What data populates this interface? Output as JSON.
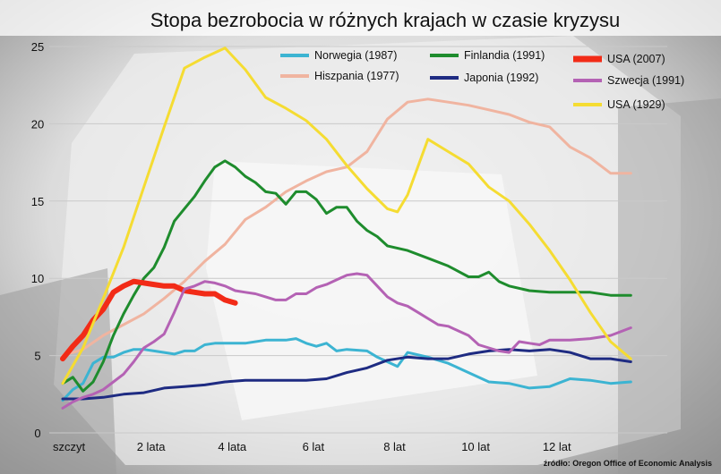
{
  "chart_data": {
    "type": "line",
    "title": "Stopa bezrobocia w różnych krajach w czasie kryzysu",
    "source": "źródło: Oregon Office of Economic Analysis",
    "xlabel": "",
    "ylabel": "",
    "xlim": [
      0,
      14.5
    ],
    "ylim": [
      0,
      25
    ],
    "grid": true,
    "legend_position": "top-right",
    "x_ticks": [
      {
        "value": 0,
        "label": "szczyt"
      },
      {
        "value": 2,
        "label": "2 lata"
      },
      {
        "value": 4,
        "label": "4 lata"
      },
      {
        "value": 6,
        "label": "6 lat"
      },
      {
        "value": 8,
        "label": "8 lat"
      },
      {
        "value": 10,
        "label": "10 lat"
      },
      {
        "value": 12,
        "label": "12 lat"
      }
    ],
    "y_ticks": [
      0,
      5,
      10,
      15,
      20,
      25
    ],
    "series": [
      {
        "name": "Norwegia (1987)",
        "color": "#3cb4d2",
        "width": 3,
        "points": [
          [
            0,
            2.1
          ],
          [
            0.25,
            2.8
          ],
          [
            0.5,
            3.2
          ],
          [
            0.75,
            4.5
          ],
          [
            1,
            4.9
          ],
          [
            1.25,
            4.9
          ],
          [
            1.5,
            5.2
          ],
          [
            1.75,
            5.4
          ],
          [
            2,
            5.4
          ],
          [
            2.25,
            5.3
          ],
          [
            2.5,
            5.2
          ],
          [
            2.75,
            5.1
          ],
          [
            3,
            5.3
          ],
          [
            3.25,
            5.3
          ],
          [
            3.5,
            5.7
          ],
          [
            3.75,
            5.8
          ],
          [
            4,
            5.8
          ],
          [
            4.5,
            5.8
          ],
          [
            5,
            6.0
          ],
          [
            5.5,
            6.0
          ],
          [
            5.75,
            6.1
          ],
          [
            6,
            5.8
          ],
          [
            6.25,
            5.6
          ],
          [
            6.5,
            5.8
          ],
          [
            6.75,
            5.3
          ],
          [
            7,
            5.4
          ],
          [
            7.5,
            5.3
          ],
          [
            7.75,
            4.9
          ],
          [
            8,
            4.6
          ],
          [
            8.25,
            4.3
          ],
          [
            8.5,
            5.2
          ],
          [
            9,
            4.9
          ],
          [
            9.5,
            4.5
          ],
          [
            10,
            3.9
          ],
          [
            10.5,
            3.3
          ],
          [
            11,
            3.2
          ],
          [
            11.5,
            2.9
          ],
          [
            12,
            3.0
          ],
          [
            12.5,
            3.5
          ],
          [
            13,
            3.4
          ],
          [
            13.5,
            3.2
          ],
          [
            14,
            3.3
          ]
        ]
      },
      {
        "name": "Hiszpania (1977)",
        "color": "#f0b4a0",
        "width": 3,
        "points": [
          [
            0,
            5.0
          ],
          [
            0.5,
            5.4
          ],
          [
            1,
            6.3
          ],
          [
            1.5,
            7.0
          ],
          [
            2,
            7.7
          ],
          [
            2.5,
            8.7
          ],
          [
            3,
            9.8
          ],
          [
            3.5,
            11.1
          ],
          [
            4,
            12.2
          ],
          [
            4.5,
            13.8
          ],
          [
            5,
            14.6
          ],
          [
            5.5,
            15.6
          ],
          [
            6,
            16.3
          ],
          [
            6.5,
            16.9
          ],
          [
            7,
            17.2
          ],
          [
            7.5,
            18.2
          ],
          [
            8,
            20.3
          ],
          [
            8.5,
            21.4
          ],
          [
            9,
            21.6
          ],
          [
            9.5,
            21.4
          ],
          [
            10,
            21.2
          ],
          [
            10.5,
            20.9
          ],
          [
            11,
            20.6
          ],
          [
            11.5,
            20.1
          ],
          [
            12,
            19.8
          ],
          [
            12.5,
            18.5
          ],
          [
            13,
            17.8
          ],
          [
            13.5,
            16.8
          ],
          [
            14,
            16.8
          ]
        ]
      },
      {
        "name": "Finlandia (1991)",
        "color": "#1e8c2d",
        "width": 3,
        "points": [
          [
            0,
            3.2
          ],
          [
            0.25,
            3.6
          ],
          [
            0.5,
            2.7
          ],
          [
            0.75,
            3.3
          ],
          [
            1,
            4.6
          ],
          [
            1.25,
            6.3
          ],
          [
            1.5,
            7.7
          ],
          [
            1.75,
            8.9
          ],
          [
            2,
            10.0
          ],
          [
            2.25,
            10.7
          ],
          [
            2.5,
            12.0
          ],
          [
            2.75,
            13.7
          ],
          [
            3,
            14.5
          ],
          [
            3.25,
            15.3
          ],
          [
            3.5,
            16.3
          ],
          [
            3.75,
            17.2
          ],
          [
            4,
            17.6
          ],
          [
            4.25,
            17.2
          ],
          [
            4.5,
            16.6
          ],
          [
            4.75,
            16.2
          ],
          [
            5,
            15.6
          ],
          [
            5.25,
            15.5
          ],
          [
            5.5,
            14.8
          ],
          [
            5.75,
            15.6
          ],
          [
            6,
            15.6
          ],
          [
            6.25,
            15.1
          ],
          [
            6.5,
            14.2
          ],
          [
            6.75,
            14.6
          ],
          [
            7,
            14.6
          ],
          [
            7.25,
            13.7
          ],
          [
            7.5,
            13.1
          ],
          [
            7.75,
            12.7
          ],
          [
            8,
            12.1
          ],
          [
            8.5,
            11.8
          ],
          [
            9,
            11.3
          ],
          [
            9.5,
            10.8
          ],
          [
            10,
            10.1
          ],
          [
            10.25,
            10.1
          ],
          [
            10.5,
            10.4
          ],
          [
            10.75,
            9.8
          ],
          [
            11,
            9.5
          ],
          [
            11.5,
            9.2
          ],
          [
            12,
            9.1
          ],
          [
            12.5,
            9.1
          ],
          [
            13,
            9.1
          ],
          [
            13.5,
            8.9
          ],
          [
            14,
            8.9
          ]
        ]
      },
      {
        "name": "Japonia (1992)",
        "color": "#1e2b82",
        "width": 3,
        "points": [
          [
            0,
            2.2
          ],
          [
            0.5,
            2.2
          ],
          [
            1,
            2.3
          ],
          [
            1.5,
            2.5
          ],
          [
            2,
            2.6
          ],
          [
            2.5,
            2.9
          ],
          [
            3,
            3.0
          ],
          [
            3.5,
            3.1
          ],
          [
            4,
            3.3
          ],
          [
            4.5,
            3.4
          ],
          [
            5,
            3.4
          ],
          [
            5.5,
            3.4
          ],
          [
            6,
            3.4
          ],
          [
            6.5,
            3.5
          ],
          [
            7,
            3.9
          ],
          [
            7.5,
            4.2
          ],
          [
            8,
            4.7
          ],
          [
            8.5,
            4.9
          ],
          [
            9,
            4.8
          ],
          [
            9.5,
            4.8
          ],
          [
            10,
            5.1
          ],
          [
            10.5,
            5.3
          ],
          [
            11,
            5.4
          ],
          [
            11.5,
            5.3
          ],
          [
            12,
            5.4
          ],
          [
            12.5,
            5.2
          ],
          [
            13,
            4.8
          ],
          [
            13.5,
            4.8
          ],
          [
            14,
            4.6
          ]
        ]
      },
      {
        "name": "USA (2007)",
        "color": "#f22b17",
        "width": 6,
        "points": [
          [
            0,
            4.8
          ],
          [
            0.25,
            5.6
          ],
          [
            0.5,
            6.3
          ],
          [
            0.75,
            7.3
          ],
          [
            1,
            8.0
          ],
          [
            1.25,
            9.1
          ],
          [
            1.5,
            9.5
          ],
          [
            1.75,
            9.8
          ],
          [
            2,
            9.7
          ],
          [
            2.25,
            9.6
          ],
          [
            2.5,
            9.5
          ],
          [
            2.75,
            9.5
          ],
          [
            3,
            9.2
          ],
          [
            3.25,
            9.1
          ],
          [
            3.5,
            9.0
          ],
          [
            3.75,
            9.0
          ],
          [
            4,
            8.6
          ],
          [
            4.25,
            8.4
          ]
        ]
      },
      {
        "name": "Szwecja (1991)",
        "color": "#b462b4",
        "width": 3,
        "points": [
          [
            0,
            1.6
          ],
          [
            0.25,
            2.0
          ],
          [
            0.5,
            2.3
          ],
          [
            0.75,
            2.5
          ],
          [
            1,
            2.8
          ],
          [
            1.25,
            3.3
          ],
          [
            1.5,
            3.8
          ],
          [
            1.75,
            4.6
          ],
          [
            2,
            5.5
          ],
          [
            2.25,
            5.9
          ],
          [
            2.5,
            6.4
          ],
          [
            2.75,
            7.8
          ],
          [
            3,
            9.3
          ],
          [
            3.25,
            9.5
          ],
          [
            3.5,
            9.8
          ],
          [
            3.75,
            9.7
          ],
          [
            4,
            9.5
          ],
          [
            4.25,
            9.2
          ],
          [
            4.5,
            9.1
          ],
          [
            4.75,
            9.0
          ],
          [
            5,
            8.8
          ],
          [
            5.25,
            8.6
          ],
          [
            5.5,
            8.6
          ],
          [
            5.75,
            9.0
          ],
          [
            6,
            9.0
          ],
          [
            6.25,
            9.4
          ],
          [
            6.5,
            9.6
          ],
          [
            6.75,
            9.9
          ],
          [
            7,
            10.2
          ],
          [
            7.25,
            10.3
          ],
          [
            7.5,
            10.2
          ],
          [
            7.75,
            9.5
          ],
          [
            8,
            8.8
          ],
          [
            8.25,
            8.4
          ],
          [
            8.5,
            8.2
          ],
          [
            8.75,
            7.8
          ],
          [
            9,
            7.4
          ],
          [
            9.25,
            7.0
          ],
          [
            9.5,
            6.9
          ],
          [
            9.75,
            6.6
          ],
          [
            10,
            6.3
          ],
          [
            10.25,
            5.7
          ],
          [
            10.5,
            5.5
          ],
          [
            10.75,
            5.3
          ],
          [
            11,
            5.2
          ],
          [
            11.25,
            5.9
          ],
          [
            11.5,
            5.8
          ],
          [
            11.75,
            5.7
          ],
          [
            12,
            6.0
          ],
          [
            12.5,
            6.0
          ],
          [
            13,
            6.1
          ],
          [
            13.5,
            6.3
          ],
          [
            14,
            6.8
          ]
        ]
      },
      {
        "name": "USA (1929)",
        "color": "#f5dc32",
        "width": 3,
        "points": [
          [
            0,
            3.2
          ],
          [
            0.5,
            5.5
          ],
          [
            1,
            8.7
          ],
          [
            1.5,
            12.0
          ],
          [
            2,
            15.9
          ],
          [
            2.5,
            19.8
          ],
          [
            3,
            23.6
          ],
          [
            3.5,
            24.3
          ],
          [
            4,
            24.9
          ],
          [
            4.5,
            23.5
          ],
          [
            5,
            21.7
          ],
          [
            5.5,
            21.0
          ],
          [
            6,
            20.2
          ],
          [
            6.5,
            19.0
          ],
          [
            7,
            17.3
          ],
          [
            7.5,
            15.8
          ],
          [
            8,
            14.5
          ],
          [
            8.25,
            14.3
          ],
          [
            8.5,
            15.4
          ],
          [
            9,
            19.0
          ],
          [
            9.5,
            18.2
          ],
          [
            10,
            17.4
          ],
          [
            10.5,
            15.9
          ],
          [
            11,
            15.0
          ],
          [
            11.5,
            13.5
          ],
          [
            12,
            11.8
          ],
          [
            12.5,
            9.9
          ],
          [
            13,
            7.8
          ],
          [
            13.5,
            5.9
          ],
          [
            14,
            4.8
          ]
        ]
      }
    ],
    "legend": [
      {
        "label": "Norwegia (1987)",
        "color": "#3cb4d2"
      },
      {
        "label": "Finlandia (1991)",
        "color": "#1e8c2d"
      },
      {
        "label": "USA (2007)",
        "color": "#f22b17"
      },
      {
        "label": "Hiszpania (1977)",
        "color": "#f0b4a0"
      },
      {
        "label": "Japonia (1992)",
        "color": "#1e2b82"
      },
      {
        "label": "Szwecja (1991)",
        "color": "#b462b4"
      },
      {
        "label": "USA (1929)",
        "color": "#f5dc32"
      }
    ]
  }
}
